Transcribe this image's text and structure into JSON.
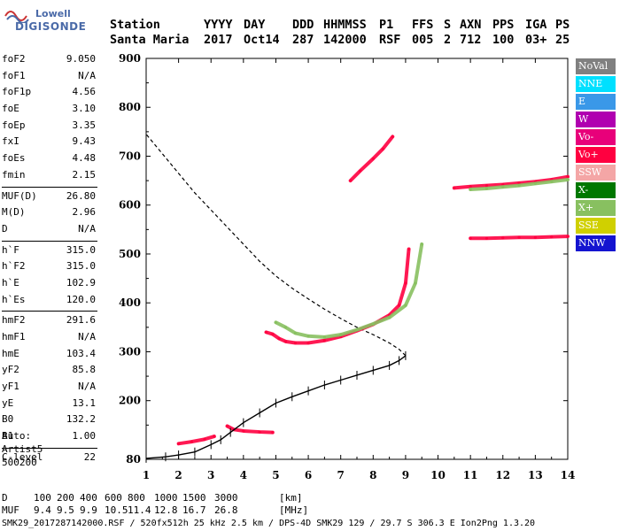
{
  "logo": {
    "line1": "Lowell",
    "line2": "DIGISONDE"
  },
  "header": {
    "labels": [
      "Station",
      "YYYY",
      "DAY",
      "DDD",
      "HHMMSS",
      "P1",
      "FFS",
      "S",
      "AXN",
      "PPS",
      "IGA",
      "PS"
    ],
    "values": [
      "Santa Maria",
      "2017",
      "Oct14",
      "287",
      "142000",
      "RSF",
      "005",
      "2",
      "712",
      "100",
      "03+",
      "25"
    ]
  },
  "params_groups": [
    [
      {
        "name": "foF2",
        "value": "9.050"
      },
      {
        "name": "foF1",
        "value": "N/A"
      },
      {
        "name": "foF1p",
        "value": "4.56"
      },
      {
        "name": "foE",
        "value": "3.10"
      },
      {
        "name": "foEp",
        "value": "3.35"
      },
      {
        "name": "fxI",
        "value": "9.43"
      },
      {
        "name": "foEs",
        "value": "4.48"
      },
      {
        "name": "fmin",
        "value": "2.15"
      }
    ],
    [
      {
        "name": "MUF(D)",
        "value": "26.80"
      },
      {
        "name": "M(D)",
        "value": "2.96"
      },
      {
        "name": "D",
        "value": "N/A"
      }
    ],
    [
      {
        "name": "h`F",
        "value": "315.0"
      },
      {
        "name": "h`F2",
        "value": "315.0"
      },
      {
        "name": "h`E",
        "value": "102.9"
      },
      {
        "name": "h`Es",
        "value": "120.0"
      }
    ],
    [
      {
        "name": "hmF2",
        "value": "291.6"
      },
      {
        "name": "hmF1",
        "value": "N/A"
      },
      {
        "name": "hmE",
        "value": "103.4"
      },
      {
        "name": "yF2",
        "value": "85.8"
      },
      {
        "name": "yF1",
        "value": "N/A"
      },
      {
        "name": "yE",
        "value": "13.1"
      },
      {
        "name": "B0",
        "value": "132.2"
      },
      {
        "name": "B1",
        "value": "1.00"
      }
    ],
    [
      {
        "name": "C-level",
        "value": "22"
      }
    ]
  ],
  "autoscaling": {
    "line1": "Auto:",
    "line2": "Artist5",
    "line3": "500200"
  },
  "muf_table": {
    "d_label": "D",
    "d_values": [
      "100",
      "200",
      "400",
      "600",
      "800",
      "1000",
      "1500",
      "3000"
    ],
    "d_unit": "[km]",
    "muf_label": "MUF",
    "muf_values": [
      "9.4",
      "9.5",
      "9.9",
      "10.5",
      "11.4",
      "12.8",
      "16.7",
      "26.8"
    ],
    "muf_unit": "[MHz]"
  },
  "footer": "SMK29_2017287142000.RSF / 520fx512h 25 kHz 2.5 km / DPS-4D SMK29 129 / 29.7 S 306.3 E Ion2Png 1.3.20",
  "legend": [
    {
      "label": "NoVal",
      "color": "#808080"
    },
    {
      "label": "NNE",
      "color": "#00e0ff"
    },
    {
      "label": "E",
      "color": "#3a98e8"
    },
    {
      "label": "W",
      "color": "#b000b0"
    },
    {
      "label": "Vo-",
      "color": "#e8007a"
    },
    {
      "label": "Vo+",
      "color": "#ff0040"
    },
    {
      "label": "SSW",
      "color": "#f4a6a6"
    },
    {
      "label": "X-",
      "color": "#007800"
    },
    {
      "label": "X+",
      "color": "#88c060"
    },
    {
      "label": "SSE",
      "color": "#d0d000"
    },
    {
      "label": "NNW",
      "color": "#1414d0"
    }
  ],
  "chart_data": {
    "type": "scatter",
    "title": "",
    "xlabel": "",
    "ylabel": "",
    "xlim": [
      1,
      14
    ],
    "ylim": [
      80,
      900
    ],
    "x_ticks": [
      1,
      2,
      3,
      4,
      5,
      6,
      7,
      8,
      9,
      10,
      11,
      12,
      13,
      14
    ],
    "y_ticks": [
      80,
      200,
      300,
      400,
      500,
      600,
      700,
      800,
      900
    ],
    "series": [
      {
        "name": "Vo+",
        "points": [
          [
            4.7,
            340
          ],
          [
            4.9,
            336
          ],
          [
            5.1,
            327
          ],
          [
            5.3,
            321
          ],
          [
            5.6,
            318
          ],
          [
            6.0,
            318
          ],
          [
            6.5,
            323
          ],
          [
            7.0,
            331
          ],
          [
            7.5,
            343
          ],
          [
            8.0,
            356
          ],
          [
            8.5,
            375
          ],
          [
            8.8,
            395
          ],
          [
            9.0,
            440
          ],
          [
            9.1,
            510
          ]
        ]
      },
      {
        "name": "X+",
        "points": [
          [
            5.0,
            360
          ],
          [
            5.3,
            350
          ],
          [
            5.6,
            338
          ],
          [
            6.0,
            332
          ],
          [
            6.5,
            330
          ],
          [
            7.0,
            335
          ],
          [
            7.5,
            345
          ],
          [
            8.0,
            357
          ],
          [
            8.5,
            370
          ],
          [
            9.0,
            395
          ],
          [
            9.3,
            440
          ],
          [
            9.5,
            520
          ]
        ]
      },
      {
        "name": "Vo+",
        "points": [
          [
            3.5,
            148
          ],
          [
            3.7,
            141
          ],
          [
            4.0,
            138
          ],
          [
            4.5,
            136
          ],
          [
            4.9,
            135
          ]
        ]
      },
      {
        "name": "Vo+",
        "points": [
          [
            2.0,
            112
          ],
          [
            2.4,
            116
          ],
          [
            2.8,
            121
          ],
          [
            3.1,
            127
          ]
        ]
      },
      {
        "name": "Vo+",
        "points": [
          [
            10.5,
            635
          ],
          [
            11.0,
            638
          ],
          [
            11.5,
            640
          ],
          [
            12.0,
            642
          ],
          [
            12.5,
            645
          ],
          [
            13.0,
            648
          ],
          [
            13.5,
            652
          ],
          [
            14.0,
            658
          ]
        ]
      },
      {
        "name": "X+",
        "points": [
          [
            11.0,
            632
          ],
          [
            11.5,
            634
          ],
          [
            12.0,
            637
          ],
          [
            12.5,
            640
          ],
          [
            13.0,
            644
          ],
          [
            13.5,
            648
          ],
          [
            14.0,
            652
          ]
        ]
      },
      {
        "name": "Vo+",
        "points": [
          [
            11.0,
            532
          ],
          [
            11.5,
            532
          ],
          [
            12.0,
            533
          ],
          [
            12.5,
            534
          ],
          [
            13.0,
            534
          ],
          [
            13.5,
            535
          ],
          [
            14.0,
            536
          ]
        ]
      },
      {
        "name": "Vo+",
        "points": [
          [
            7.3,
            650
          ],
          [
            7.6,
            670
          ],
          [
            8.0,
            695
          ],
          [
            8.3,
            715
          ],
          [
            8.6,
            740
          ]
        ]
      }
    ],
    "profile": {
      "points": [
        [
          1.0,
          82
        ],
        [
          1.6,
          85
        ],
        [
          2.0,
          89
        ],
        [
          2.5,
          95
        ],
        [
          3.0,
          110
        ],
        [
          3.3,
          120
        ],
        [
          3.6,
          135
        ],
        [
          4.0,
          155
        ],
        [
          4.5,
          175
        ],
        [
          5.0,
          195
        ],
        [
          5.5,
          208
        ],
        [
          6.0,
          220
        ],
        [
          6.5,
          232
        ],
        [
          7.0,
          242
        ],
        [
          7.5,
          252
        ],
        [
          8.0,
          262
        ],
        [
          8.5,
          272
        ],
        [
          8.8,
          282
        ],
        [
          9.0,
          292
        ]
      ]
    },
    "virtual_height_model": {
      "points": [
        [
          9.0,
          292
        ],
        [
          8.8,
          305
        ],
        [
          8.5,
          318
        ],
        [
          8.0,
          335
        ],
        [
          7.5,
          350
        ],
        [
          7.0,
          368
        ],
        [
          6.5,
          387
        ],
        [
          6.0,
          408
        ],
        [
          5.5,
          430
        ],
        [
          5.0,
          455
        ],
        [
          4.5,
          485
        ],
        [
          4.0,
          520
        ],
        [
          3.5,
          555
        ],
        [
          3.0,
          590
        ],
        [
          2.5,
          625
        ],
        [
          2.0,
          665
        ],
        [
          1.5,
          705
        ],
        [
          1.0,
          745
        ]
      ]
    }
  }
}
